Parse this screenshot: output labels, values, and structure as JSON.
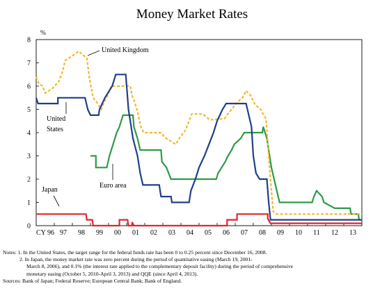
{
  "chart_data": {
    "type": "line",
    "title": "Money Market Rates",
    "ylabel": "%",
    "xlabel": "",
    "xlim": [
      1996,
      2014
    ],
    "ylim": [
      0,
      8
    ],
    "x_ticks": [
      "CY 96",
      "97",
      "98",
      "99",
      "00",
      "01",
      "02",
      "03",
      "04",
      "05",
      "06",
      "07",
      "08",
      "09",
      "10",
      "11",
      "12",
      "13"
    ],
    "y_ticks": [
      "0",
      "1",
      "2",
      "3",
      "4",
      "5",
      "6",
      "7",
      "8"
    ],
    "grid": false,
    "annotations": [
      {
        "text": "United Kingdom",
        "series": "uk"
      },
      {
        "text": "United",
        "series": "us"
      },
      {
        "text": "States",
        "series": "us"
      },
      {
        "text": "Euro area",
        "series": "euro"
      },
      {
        "text": "Japan",
        "series": "japan"
      }
    ],
    "series": [
      {
        "id": "uk",
        "name": "United Kingdom",
        "color": "#f2b830",
        "dash": true,
        "points": [
          [
            1996.0,
            6.4
          ],
          [
            1996.15,
            6.1
          ],
          [
            1996.35,
            6.0
          ],
          [
            1996.5,
            5.7
          ],
          [
            1996.9,
            5.9
          ],
          [
            1997.25,
            6.2
          ],
          [
            1997.45,
            6.6
          ],
          [
            1997.6,
            7.1
          ],
          [
            1997.9,
            7.25
          ],
          [
            1998.35,
            7.5
          ],
          [
            1998.8,
            7.2
          ],
          [
            1998.95,
            6.3
          ],
          [
            1999.15,
            5.5
          ],
          [
            1999.4,
            5.25
          ],
          [
            1999.6,
            5.0
          ],
          [
            1999.75,
            5.3
          ],
          [
            1999.95,
            5.6
          ],
          [
            2000.15,
            6.0
          ],
          [
            2000.55,
            6.0
          ],
          [
            2001.2,
            6.0
          ],
          [
            2001.3,
            5.6
          ],
          [
            2001.45,
            5.3
          ],
          [
            2001.6,
            4.9
          ],
          [
            2001.8,
            4.2
          ],
          [
            2001.95,
            4.0
          ],
          [
            2002.5,
            4.0
          ],
          [
            2002.9,
            4.0
          ],
          [
            2003.1,
            3.8
          ],
          [
            2003.5,
            3.6
          ],
          [
            2003.7,
            3.5
          ],
          [
            2003.95,
            3.8
          ],
          [
            2004.25,
            4.1
          ],
          [
            2004.5,
            4.6
          ],
          [
            2004.6,
            4.8
          ],
          [
            2005.2,
            4.8
          ],
          [
            2005.6,
            4.55
          ],
          [
            2006.4,
            4.6
          ],
          [
            2006.6,
            4.8
          ],
          [
            2006.8,
            5.0
          ],
          [
            2007.05,
            5.25
          ],
          [
            2007.4,
            5.5
          ],
          [
            2007.6,
            5.8
          ],
          [
            2007.85,
            5.6
          ],
          [
            2008.1,
            5.2
          ],
          [
            2008.4,
            5.0
          ],
          [
            2008.7,
            4.6
          ],
          [
            2008.85,
            3.0
          ],
          [
            2009.0,
            1.5
          ],
          [
            2009.1,
            0.6
          ],
          [
            2009.3,
            0.5
          ],
          [
            2014.0,
            0.5
          ]
        ]
      },
      {
        "id": "us",
        "name": "United States",
        "color": "#1f3f8a",
        "dash": false,
        "points": [
          [
            1996.0,
            5.5
          ],
          [
            1996.1,
            5.25
          ],
          [
            1997.2,
            5.25
          ],
          [
            1997.2,
            5.5
          ],
          [
            1998.7,
            5.5
          ],
          [
            1998.85,
            5.0
          ],
          [
            1999.0,
            4.75
          ],
          [
            1999.45,
            4.75
          ],
          [
            1999.5,
            5.0
          ],
          [
            1999.8,
            5.5
          ],
          [
            2000.0,
            5.75
          ],
          [
            2000.2,
            6.0
          ],
          [
            2000.4,
            6.5
          ],
          [
            2000.95,
            6.5
          ],
          [
            2001.0,
            6.0
          ],
          [
            2001.1,
            5.0
          ],
          [
            2001.2,
            4.5
          ],
          [
            2001.35,
            3.75
          ],
          [
            2001.6,
            3.0
          ],
          [
            2001.75,
            2.25
          ],
          [
            2001.9,
            1.75
          ],
          [
            2002.8,
            1.75
          ],
          [
            2002.9,
            1.25
          ],
          [
            2003.45,
            1.25
          ],
          [
            2003.5,
            1.0
          ],
          [
            2004.45,
            1.0
          ],
          [
            2004.55,
            1.5
          ],
          [
            2004.8,
            2.0
          ],
          [
            2005.0,
            2.5
          ],
          [
            2005.3,
            3.0
          ],
          [
            2005.55,
            3.5
          ],
          [
            2005.8,
            4.0
          ],
          [
            2006.0,
            4.5
          ],
          [
            2006.3,
            5.0
          ],
          [
            2006.5,
            5.25
          ],
          [
            2007.6,
            5.25
          ],
          [
            2007.75,
            4.75
          ],
          [
            2007.9,
            4.25
          ],
          [
            2008.0,
            3.0
          ],
          [
            2008.15,
            2.25
          ],
          [
            2008.35,
            2.0
          ],
          [
            2008.75,
            2.0
          ],
          [
            2008.85,
            1.0
          ],
          [
            2008.95,
            0.25
          ],
          [
            2014.0,
            0.25
          ]
        ]
      },
      {
        "id": "euro",
        "name": "Euro area",
        "color": "#2e9a46",
        "dash": false,
        "points": [
          [
            1999.0,
            3.0
          ],
          [
            1999.3,
            3.0
          ],
          [
            1999.3,
            2.5
          ],
          [
            1999.9,
            2.5
          ],
          [
            2000.05,
            3.0
          ],
          [
            2000.25,
            3.5
          ],
          [
            2000.45,
            4.0
          ],
          [
            2000.6,
            4.25
          ],
          [
            2000.8,
            4.75
          ],
          [
            2001.35,
            4.75
          ],
          [
            2001.4,
            4.25
          ],
          [
            2001.6,
            3.75
          ],
          [
            2001.75,
            3.25
          ],
          [
            2002.9,
            3.25
          ],
          [
            2002.95,
            2.75
          ],
          [
            2003.2,
            2.5
          ],
          [
            2003.45,
            2.0
          ],
          [
            2005.95,
            2.0
          ],
          [
            2006.05,
            2.25
          ],
          [
            2006.25,
            2.5
          ],
          [
            2006.45,
            2.75
          ],
          [
            2006.6,
            3.0
          ],
          [
            2006.8,
            3.25
          ],
          [
            2006.95,
            3.5
          ],
          [
            2007.3,
            3.75
          ],
          [
            2007.5,
            4.0
          ],
          [
            2008.5,
            4.0
          ],
          [
            2008.55,
            4.25
          ],
          [
            2008.75,
            3.75
          ],
          [
            2008.85,
            3.25
          ],
          [
            2009.0,
            2.5
          ],
          [
            2009.15,
            2.0
          ],
          [
            2009.3,
            1.5
          ],
          [
            2009.45,
            1.0
          ],
          [
            2011.25,
            1.0
          ],
          [
            2011.35,
            1.25
          ],
          [
            2011.5,
            1.5
          ],
          [
            2011.8,
            1.25
          ],
          [
            2011.9,
            1.0
          ],
          [
            2012.5,
            0.75
          ],
          [
            2013.35,
            0.75
          ],
          [
            2013.4,
            0.5
          ],
          [
            2013.8,
            0.5
          ],
          [
            2013.85,
            0.25
          ],
          [
            2014.0,
            0.25
          ]
        ]
      },
      {
        "id": "japan",
        "name": "Japan",
        "color": "#e0262b",
        "dash": false,
        "points": [
          [
            1996.0,
            0.5
          ],
          [
            1998.75,
            0.5
          ],
          [
            1998.8,
            0.25
          ],
          [
            1999.1,
            0.25
          ],
          [
            1999.15,
            0.0
          ],
          [
            2000.6,
            0.0
          ],
          [
            2000.6,
            0.25
          ],
          [
            2001.05,
            0.25
          ],
          [
            2001.1,
            0.0
          ],
          [
            2001.3,
            0.0
          ],
          [
            2001.3,
            0.15
          ],
          [
            2001.4,
            0.0
          ],
          [
            2006.55,
            0.0
          ],
          [
            2006.55,
            0.25
          ],
          [
            2007.1,
            0.25
          ],
          [
            2007.1,
            0.5
          ],
          [
            2008.8,
            0.5
          ],
          [
            2008.8,
            0.3
          ],
          [
            2008.95,
            0.1
          ],
          [
            2014.0,
            0.1
          ]
        ]
      }
    ]
  },
  "notes": {
    "line1": "Notes: 1. In the United States, the target range for the federal funds rate has been 0 to 0.25 percent since December 16, 2008.",
    "line2": "2. In Japan, the money market rate was zero percent during the period of quantitative easing (March 19, 2001-",
    "line3": "March 8, 2006), and 0.1% (the interest rate applied to the complementary deposit facility) during the period of comprehensive",
    "line4": "monetary easing (October 5, 2010-April 3, 2013) and QQE (since April 4, 2013).",
    "line5": "Sources: Bank of Japan; Federal Reserve; European Central Bank; Bank of England."
  }
}
